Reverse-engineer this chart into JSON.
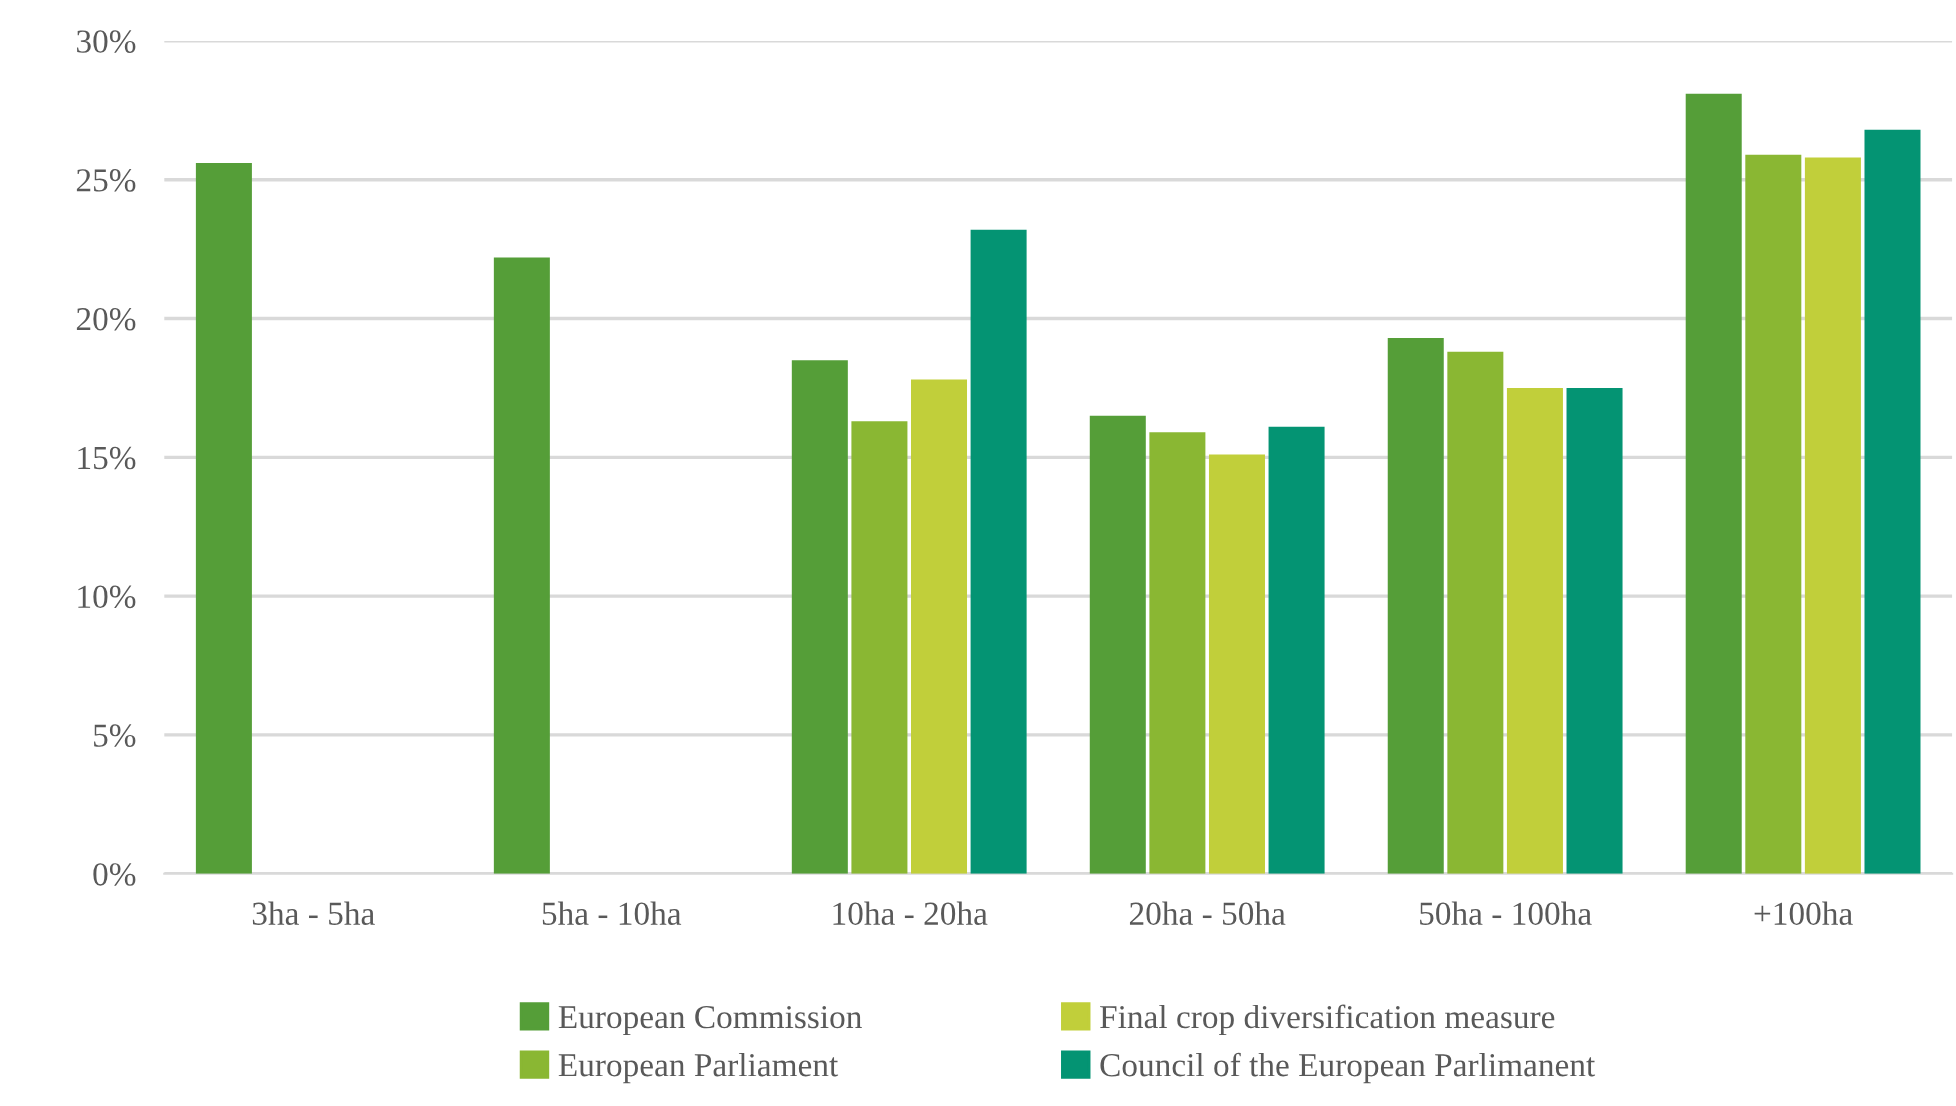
{
  "chart_data": {
    "type": "bar",
    "categories": [
      "3ha - 5ha",
      "5ha - 10ha",
      "10ha - 20ha",
      "20ha - 50ha",
      "50ha - 100ha",
      "+100ha"
    ],
    "series": [
      {
        "name": "European Commission",
        "color": "#559e38",
        "values": [
          25.6,
          22.2,
          18.5,
          16.5,
          19.3,
          28.1
        ]
      },
      {
        "name": "European Parliament",
        "color": "#8ab733",
        "values": [
          null,
          null,
          16.3,
          15.9,
          18.8,
          25.9
        ]
      },
      {
        "name": "Final crop diversification measure",
        "color": "#c1cf3a",
        "values": [
          null,
          null,
          17.8,
          15.1,
          17.5,
          25.8
        ]
      },
      {
        "name": "Council of the European Parlimanent",
        "color": "#049473",
        "values": [
          null,
          null,
          23.2,
          16.1,
          17.5,
          26.8
        ]
      }
    ],
    "ylim": [
      0,
      30
    ],
    "yticks": [
      {
        "value": 0,
        "label": "0%"
      },
      {
        "value": 5,
        "label": "5%"
      },
      {
        "value": 10,
        "label": "10%"
      },
      {
        "value": 15,
        "label": "15%"
      },
      {
        "value": 20,
        "label": "20%"
      },
      {
        "value": 25,
        "label": "25%"
      },
      {
        "value": 30,
        "label": "30%"
      }
    ],
    "grid": "y",
    "legend": "bottom"
  }
}
